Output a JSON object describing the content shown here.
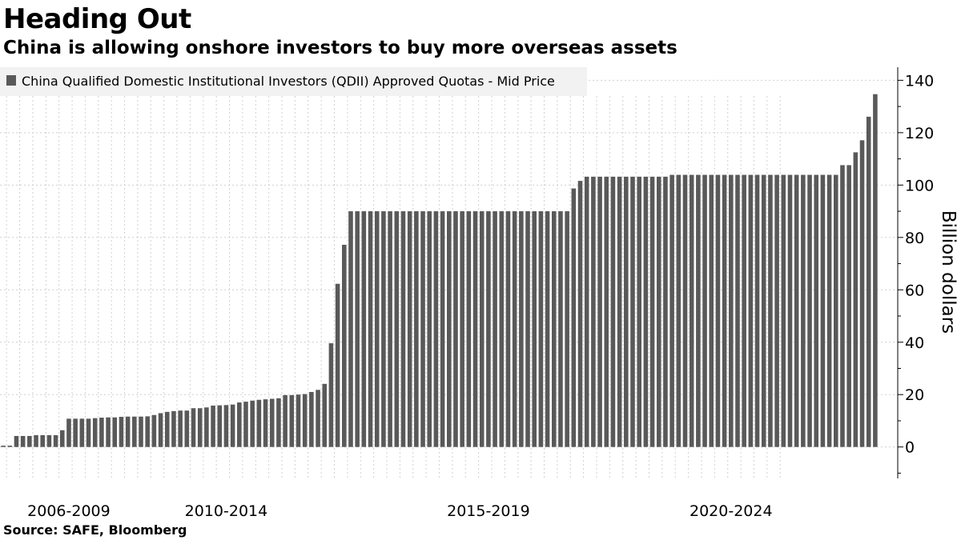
{
  "chart_data": {
    "type": "bar",
    "title": "Heading Out",
    "subtitle": "China is allowing onshore investors to buy more overseas assets",
    "source": "Source:  SAFE, Bloomberg",
    "legend": {
      "label": "China Qualified Domestic Institutional Investors (QDII) Approved Quotas - Mid Price",
      "placement": "top-left"
    },
    "ylabel": "Billion dollars",
    "ylim": [
      -12,
      145
    ],
    "yticks": [
      0,
      20,
      40,
      60,
      80,
      100,
      120,
      140
    ],
    "grid": true,
    "color": "#595959",
    "period_labels": [
      "2006-2009",
      "2010-2014",
      "2015-2019",
      "2020-2024"
    ],
    "period_label_at_bar": [
      10.5,
      34.5,
      74.5,
      111.5
    ],
    "series": [
      {
        "name": "China Qualified Domestic Institutional Investors (QDII) Approved Quotas - Mid Price",
        "values": [
          0.5,
          0.5,
          4.2,
          4.2,
          4.2,
          4.5,
          4.5,
          4.5,
          4.5,
          6.4,
          10.8,
          10.8,
          10.8,
          10.8,
          11.0,
          11.2,
          11.3,
          11.3,
          11.5,
          11.6,
          11.6,
          11.6,
          11.7,
          12.2,
          12.9,
          13.4,
          13.7,
          13.9,
          13.9,
          14.8,
          14.8,
          15.1,
          15.8,
          15.9,
          16.0,
          16.2,
          17.0,
          17.3,
          17.7,
          18.0,
          18.2,
          18.4,
          18.6,
          19.8,
          19.8,
          20.0,
          20.2,
          21.0,
          21.8,
          24.1,
          39.6,
          62.3,
          77.2,
          90.0,
          90.0,
          90.0,
          90.0,
          90.0,
          90.0,
          90.0,
          90.0,
          90.0,
          90.0,
          90.0,
          90.0,
          90.0,
          90.0,
          90.0,
          90.0,
          90.0,
          90.0,
          90.0,
          90.0,
          90.0,
          90.0,
          90.0,
          90.0,
          90.0,
          90.0,
          90.0,
          90.0,
          90.0,
          90.0,
          90.0,
          90.0,
          90.0,
          90.0,
          98.7,
          101.6,
          103.2,
          103.2,
          103.2,
          103.2,
          103.2,
          103.2,
          103.2,
          103.2,
          103.2,
          103.2,
          103.2,
          103.2,
          103.2,
          103.9,
          103.9,
          103.9,
          103.9,
          103.9,
          103.9,
          103.9,
          103.9,
          103.9,
          103.9,
          103.9,
          103.9,
          103.9,
          103.9,
          103.9,
          103.9,
          103.9,
          103.9,
          103.9,
          103.9,
          103.9,
          103.9,
          103.9,
          103.9,
          103.9,
          103.9,
          107.6,
          107.6,
          112.5,
          117.1,
          126.1,
          134.7
        ]
      }
    ]
  }
}
